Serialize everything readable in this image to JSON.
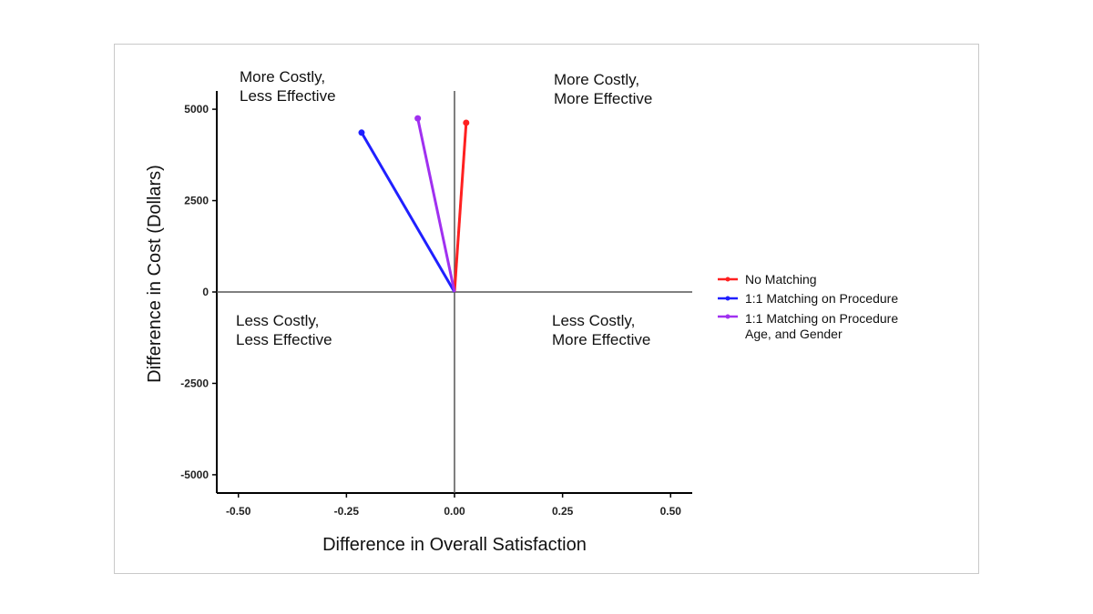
{
  "chart_data": {
    "type": "scatter",
    "title": "",
    "xlabel": "Difference in Overall Satisfaction",
    "ylabel": "Difference in Cost (Dollars)",
    "xlim": [
      -0.55,
      0.55
    ],
    "ylim": [
      -5500,
      5500
    ],
    "x_ticks": [
      -0.5,
      -0.25,
      0.0,
      0.25,
      0.5
    ],
    "x_tick_labels": [
      "-0.50",
      "-0.25",
      "0.00",
      "0.25",
      "0.50"
    ],
    "y_ticks": [
      5000,
      2500,
      0,
      -2500,
      -5000
    ],
    "y_tick_labels": [
      "5000",
      "2500",
      "0",
      "-2500",
      "-5000"
    ],
    "grid": false,
    "legend_position": "right",
    "origin": {
      "x": 0,
      "y": 0
    },
    "series": [
      {
        "name": "No Matching",
        "color": "#ff2020",
        "x": 0.027,
        "y": 4630
      },
      {
        "name": "1:1 Matching on Procedure",
        "color": "#2020ff",
        "x": -0.215,
        "y": 4360
      },
      {
        "name": "1:1 Matching on Procedure",
        "name_line2": "Age, and Gender",
        "color": "#a030f0",
        "x": -0.085,
        "y": 4750
      }
    ],
    "quadrant_labels": {
      "top_left": [
        "More Costly,",
        "Less Effective"
      ],
      "top_right": [
        "More Costly,",
        "More Effective"
      ],
      "bottom_left": [
        "Less Costly,",
        "Less Effective"
      ],
      "bottom_right": [
        "Less Costly,",
        "More Effective"
      ]
    }
  }
}
